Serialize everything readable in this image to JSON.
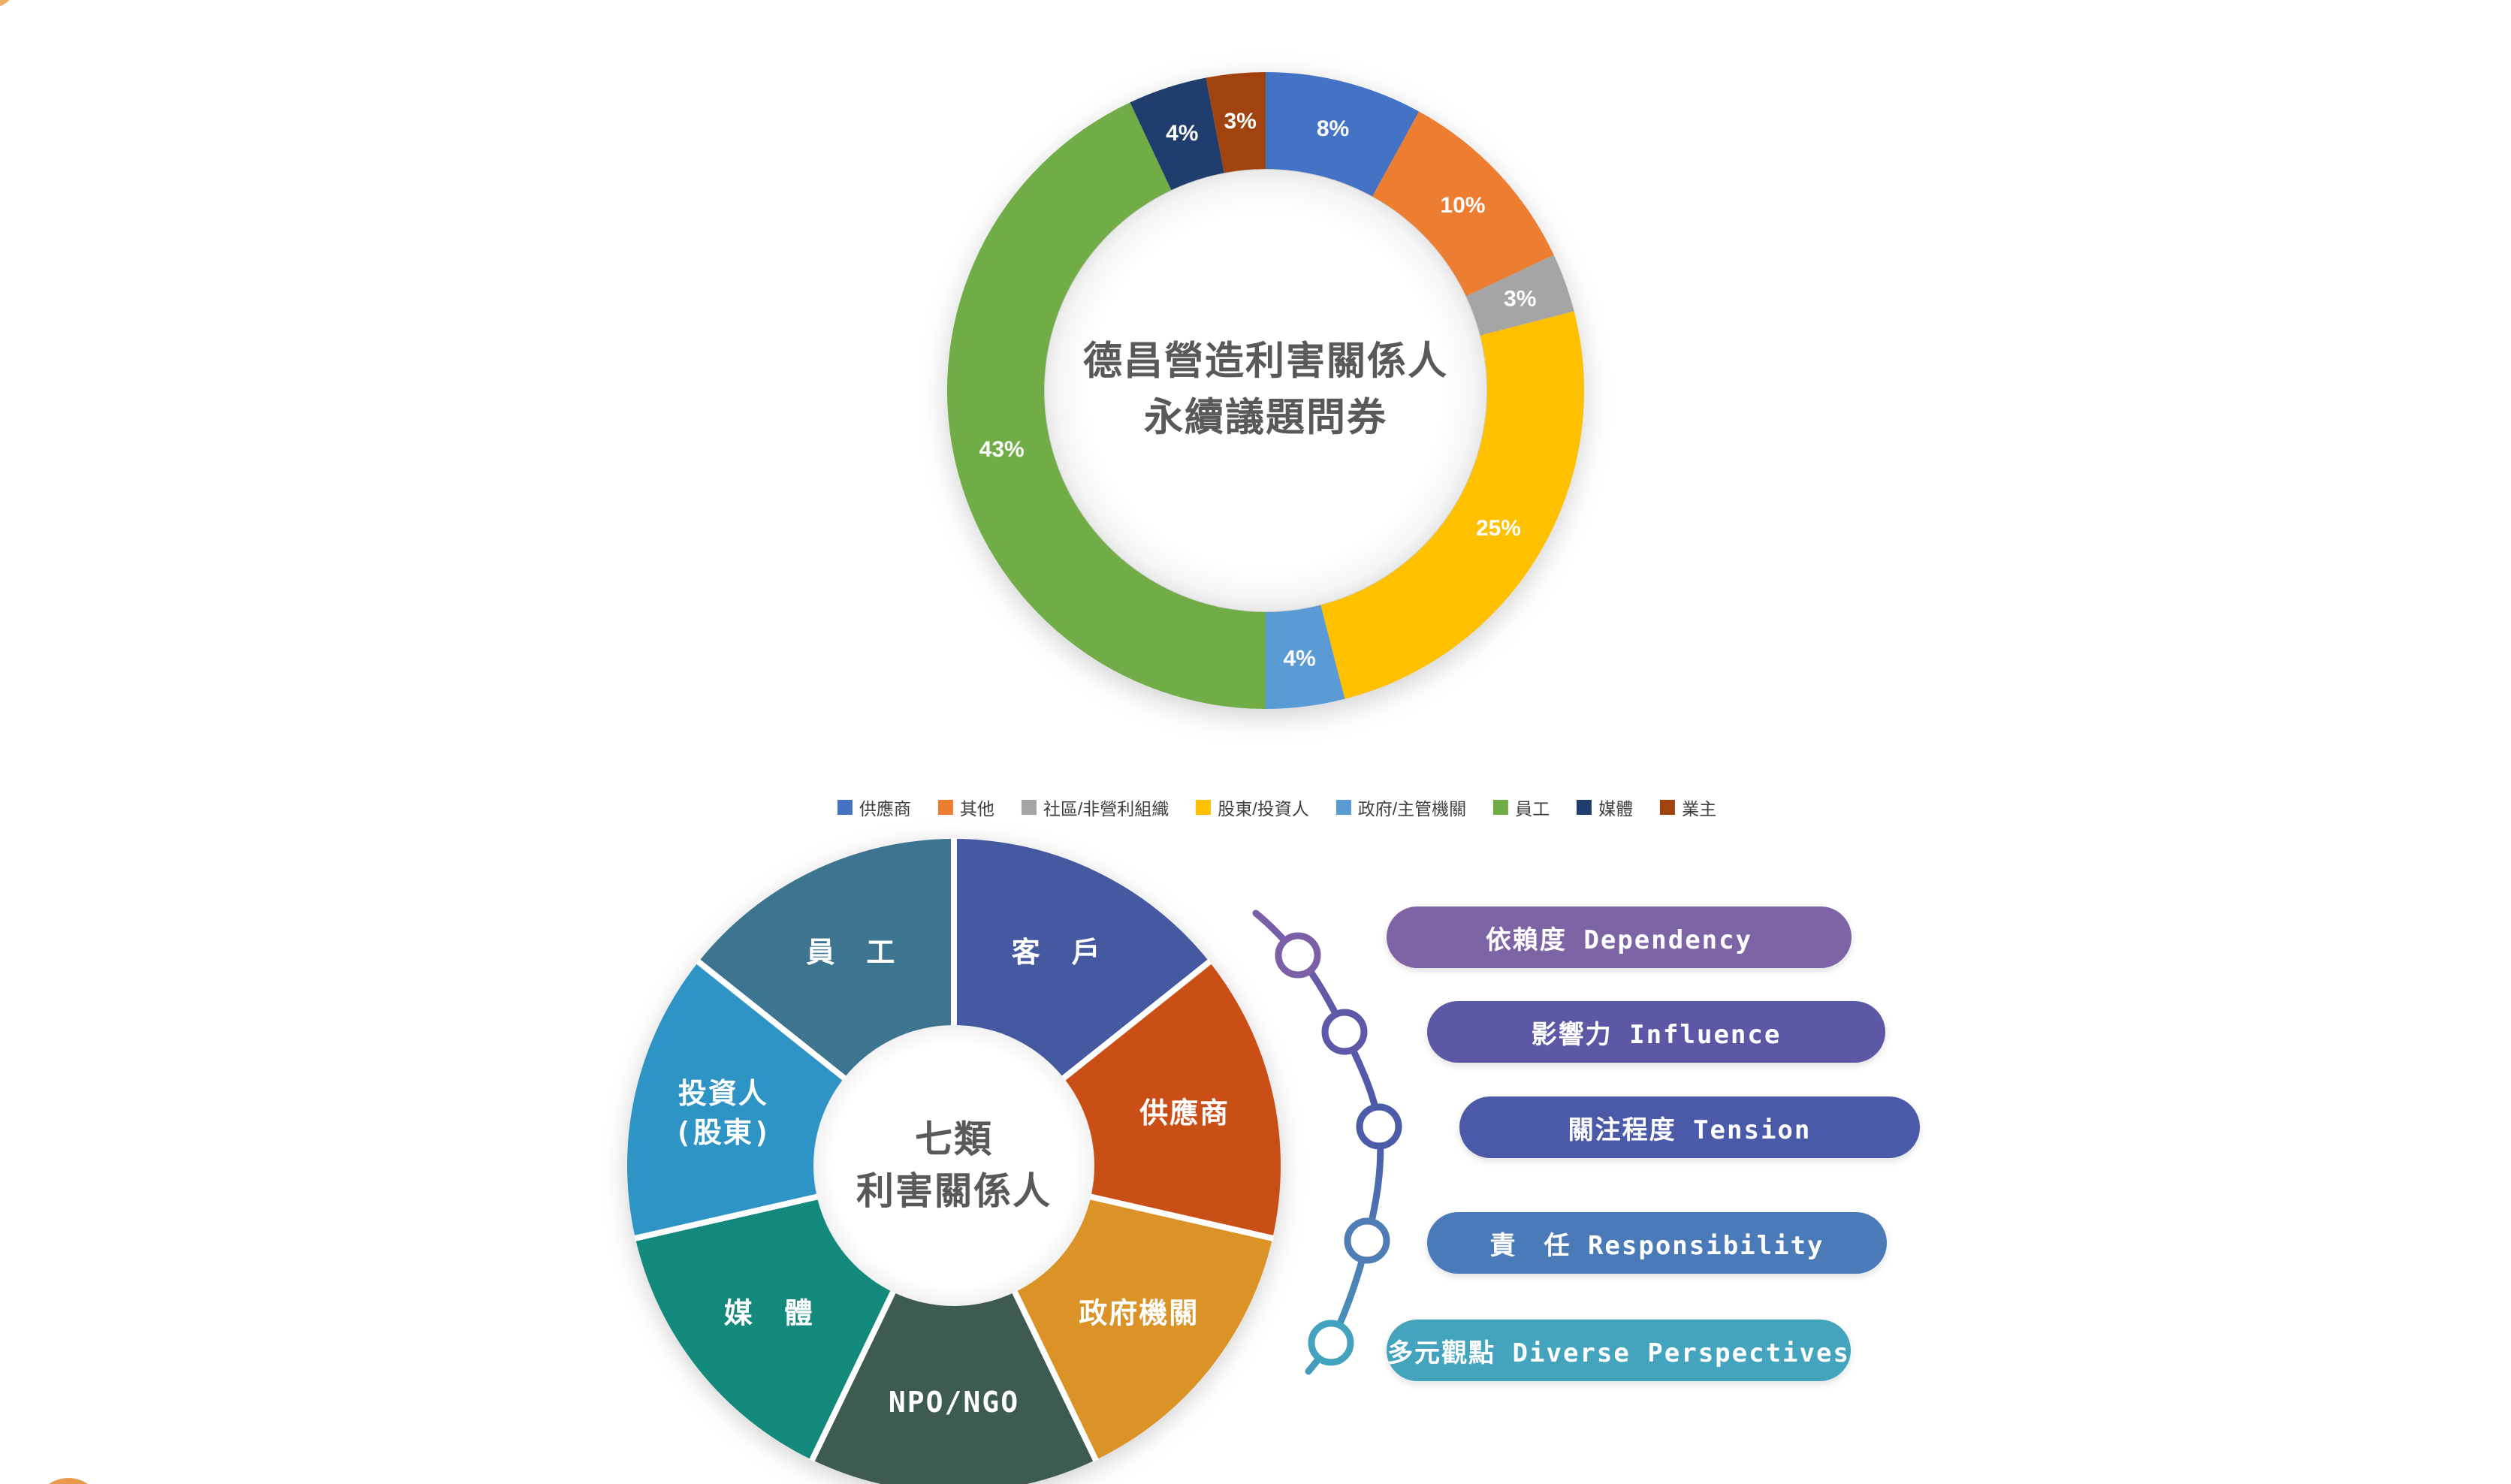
{
  "background": "#FFFFFF",
  "chart_data": [
    {
      "type": "donut",
      "title": "德昌營造利害關係人 永續議題問券",
      "title_lines": [
        "德昌營造利害關係人",
        "永續議題問券"
      ],
      "title_color": "#595959",
      "categories": [
        "供應商",
        "其他",
        "社區/非營利組織",
        "股東/投資人",
        "政府/主管機關",
        "員工",
        "媒體",
        "業主"
      ],
      "values": [
        8,
        10,
        3,
        25,
        4,
        43,
        4,
        3
      ],
      "data_labels": [
        "8%",
        "10%",
        "3%",
        "25%",
        "4%",
        "43%",
        "4%",
        "3%"
      ],
      "colors": [
        "#4472C4",
        "#ED7D31",
        "#A5A5A5",
        "#FFC000",
        "#5B9BD5",
        "#70AD47",
        "#1F3E6E",
        "#A0430F"
      ],
      "unit": "percent",
      "start_angle_deg": 0,
      "direction": "clockwise",
      "legend_position": "bottom",
      "data_label_color": "#FFFFFF"
    },
    {
      "type": "pie",
      "title": "七類利害關係人",
      "center_label_lines": [
        "七類",
        "利害關係人"
      ],
      "center_label_color": "#595959",
      "categories": [
        "客戶",
        "供應商",
        "政府機關",
        "NPO/NGO",
        "媒體",
        "投資人(股東)",
        "員工"
      ],
      "display_labels": [
        "客　戶",
        "供應商",
        "政府機關",
        "NPO/NGO",
        "媒　體",
        "投資人\n(股東)",
        "員　工"
      ],
      "values": [
        1,
        1,
        1,
        1,
        1,
        1,
        1
      ],
      "colors": [
        "#4459A0",
        "#C94F16",
        "#DB9226",
        "#3E5B52",
        "#13897C",
        "#2E94C5",
        "#3D7591"
      ],
      "start_angle_deg": 0,
      "direction": "clockwise",
      "data_label_color": "#FFFFFF"
    }
  ],
  "criteria": {
    "items": [
      {
        "label": "依賴度 Dependency",
        "color": "#7D64A5"
      },
      {
        "label": "影響力 Influence",
        "color": "#5D58A6"
      },
      {
        "label": "關注程度 Tension",
        "color": "#4A5AA8"
      },
      {
        "label": "責　任 Responsibility",
        "color": "#4B7AB8"
      },
      {
        "label": "多元觀點 Diverse Perspectives",
        "color": "#44A4BE"
      }
    ],
    "connector_colors": [
      "#7B60A8",
      "#5D58A8",
      "#4A5BA8",
      "#4E7CB4",
      "#44A3BE"
    ]
  },
  "decorations": {
    "bottom_left_circle_color": "#E9994C",
    "top_left_circle_color": "#EDAE66"
  }
}
